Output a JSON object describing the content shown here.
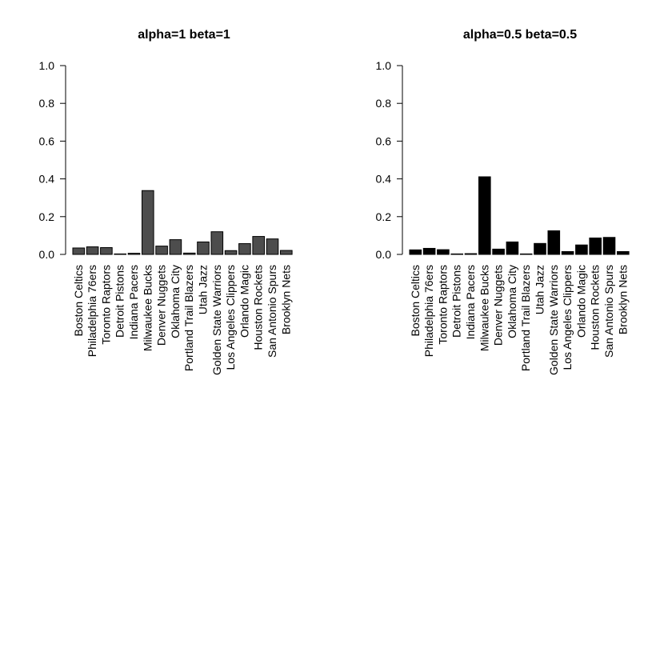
{
  "chart_data": [
    {
      "type": "bar",
      "title": "alpha=1 beta=1",
      "xlabel": "",
      "ylabel": "",
      "ylim": [
        0,
        1.0
      ],
      "yticks": [
        "0.0",
        "0.2",
        "0.4",
        "0.6",
        "0.8",
        "1.0"
      ],
      "bar_color": "#4d4d4d",
      "categories": [
        "Boston Celtics",
        "Philadelphia 76ers",
        "Toronto Raptors",
        "Detroit Pistons",
        "Indiana Pacers",
        "Milwaukee Bucks",
        "Denver Nuggets",
        "Oklahoma City",
        "Portland Trail Blazers",
        "Utah Jazz",
        "Golden State Warriors",
        "Los Angeles Clippers",
        "Orlando Magic",
        "Houston Rockets",
        "San Antonio Spurs",
        "Brooklyn Nets"
      ],
      "values": [
        0.034,
        0.04,
        0.036,
        0.002,
        0.006,
        0.338,
        0.044,
        0.078,
        0.007,
        0.066,
        0.12,
        0.02,
        0.057,
        0.095,
        0.082,
        0.021
      ]
    },
    {
      "type": "bar",
      "title": "alpha=0.5 beta=0.5",
      "xlabel": "",
      "ylabel": "",
      "ylim": [
        0,
        1.0
      ],
      "yticks": [
        "0.0",
        "0.2",
        "0.4",
        "0.6",
        "0.8",
        "1.0"
      ],
      "bar_color": "#000000",
      "categories": [
        "Boston Celtics",
        "Philadelphia 76ers",
        "Toronto Raptors",
        "Detroit Pistons",
        "Indiana Pacers",
        "Milwaukee Bucks",
        "Denver Nuggets",
        "Oklahoma City",
        "Portland Trail Blazers",
        "Utah Jazz",
        "Golden State Warriors",
        "Los Angeles Clippers",
        "Orlando Magic",
        "Houston Rockets",
        "San Antonio Spurs",
        "Brooklyn Nets"
      ],
      "values": [
        0.024,
        0.032,
        0.025,
        0.001,
        0.004,
        0.411,
        0.028,
        0.066,
        0.002,
        0.058,
        0.125,
        0.015,
        0.05,
        0.087,
        0.09,
        0.015
      ]
    }
  ]
}
